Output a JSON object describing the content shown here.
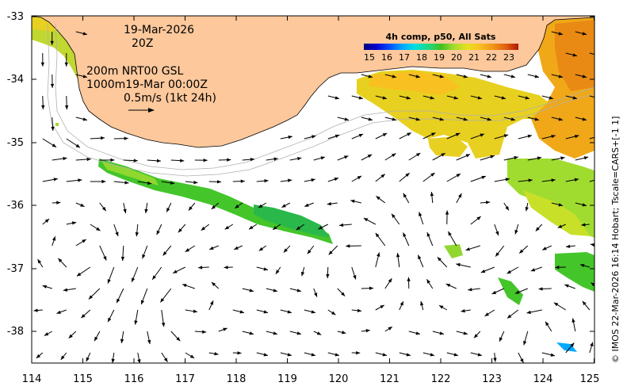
{
  "map": {
    "lon_ticks": [
      "114",
      "115",
      "116",
      "117",
      "118",
      "119",
      "120",
      "121",
      "122",
      "123",
      "124",
      "125"
    ],
    "lat_ticks": [
      "-33",
      "-34",
      "-35",
      "-36",
      "-37",
      "-38"
    ],
    "lon_range": [
      114,
      125
    ],
    "lat_range": [
      -38.5,
      -32.95
    ],
    "colors": {
      "land": "#fcc89c",
      "frame": "#000000",
      "background": "#ffffff",
      "contour": "#b0b0b0",
      "arrow": "#000000"
    }
  },
  "annotations": {
    "date": "19-Mar-2026",
    "time": "20Z",
    "line_200m": "200m  NRT00 GSL",
    "line_1000m": "1000m19-Mar 00:00Z",
    "scale_text": "0.5m/s (1kt 24h)"
  },
  "colorbar": {
    "title": "4h comp, p50, All Sats",
    "ticks": [
      "15",
      "16",
      "17",
      "18",
      "19",
      "20",
      "21",
      "22",
      "23"
    ],
    "range": [
      14.5,
      23.5
    ],
    "colors": [
      "#00007f",
      "#0000d0",
      "#0050ff",
      "#00a8ff",
      "#00e0e0",
      "#20d880",
      "#40c020",
      "#a0dc30",
      "#e8e020",
      "#f8c020",
      "#f09818",
      "#e06010",
      "#b01808"
    ]
  },
  "credit": "© IMOS 22-Mar-2026 16:14 Hobart; Tscale=CARS+[-1 1]"
}
